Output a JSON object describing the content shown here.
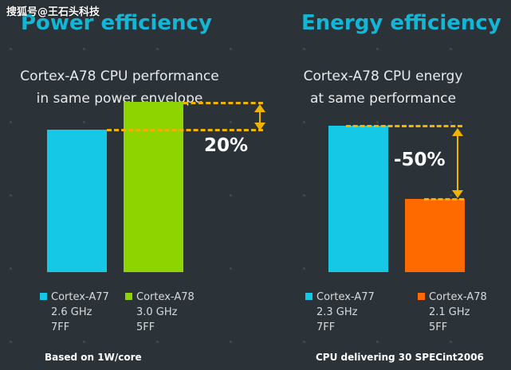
{
  "watermark": "搜狐号@王石头科技",
  "chart_data": [
    {
      "type": "bar",
      "title": "Power efficiency",
      "subtitle_line1": "Cortex-A78 CPU performance",
      "subtitle_line2": "in same power envelope",
      "categories": [
        "Cortex-A77",
        "Cortex-A78"
      ],
      "values": [
        100,
        120
      ],
      "ylim": [
        0,
        140
      ],
      "annotation": "20%",
      "colors": [
        "#14c8e6",
        "#8ed400"
      ],
      "legend": [
        {
          "name": "Cortex-A77",
          "freq": "2.6 GHz",
          "node": "7FF"
        },
        {
          "name": "Cortex-A78",
          "freq": "3.0 GHz",
          "node": "5FF"
        }
      ],
      "footnote": "Based on 1W/core"
    },
    {
      "type": "bar",
      "title": "Energy efficiency",
      "subtitle_line1": "Cortex-A78 CPU energy",
      "subtitle_line2": "at same performance",
      "categories": [
        "Cortex-A77",
        "Cortex-A78"
      ],
      "values": [
        100,
        50
      ],
      "ylim": [
        0,
        110
      ],
      "annotation": "-50%",
      "colors": [
        "#14c8e6",
        "#ff6a00"
      ],
      "legend": [
        {
          "name": "Cortex-A77",
          "freq": "2.3 GHz",
          "node": "7FF"
        },
        {
          "name": "Cortex-A78",
          "freq": "2.1 GHz",
          "node": "5FF"
        }
      ],
      "footnote": "CPU delivering 30 SPECint2006"
    }
  ]
}
